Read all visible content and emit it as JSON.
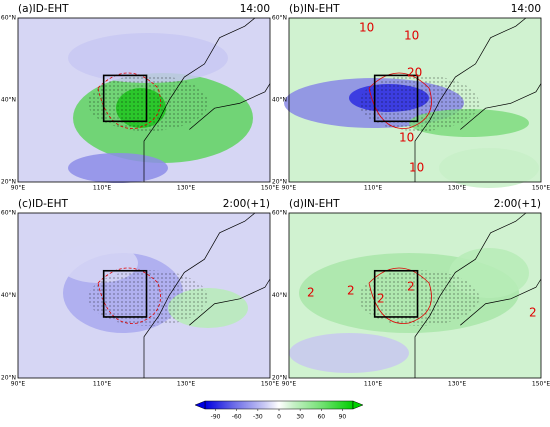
{
  "panels": [
    {
      "title": "(a)ID-EHT",
      "time": "14:00",
      "contour_labels": []
    },
    {
      "title": "(b)IN-EHT",
      "time": "14:00",
      "contour_labels": [
        "10",
        "10",
        "20",
        "10",
        "10"
      ]
    },
    {
      "title": "(c)ID-EHT",
      "time": "2:00(+1)",
      "contour_labels": []
    },
    {
      "title": "(d)IN-EHT",
      "time": "2:00(+1)",
      "contour_labels": [
        "2",
        "2",
        "2",
        "2",
        "2"
      ]
    }
  ],
  "lat_ticks": [
    "20°N",
    "40°N",
    "60°N"
  ],
  "lon_ticks": [
    "90°E",
    "110°E",
    "130°E",
    "150°E"
  ],
  "colorbar": {
    "lim": [
      -105,
      105
    ],
    "ticks": [
      -90,
      -60,
      -30,
      0,
      30,
      60,
      90
    ]
  }
}
